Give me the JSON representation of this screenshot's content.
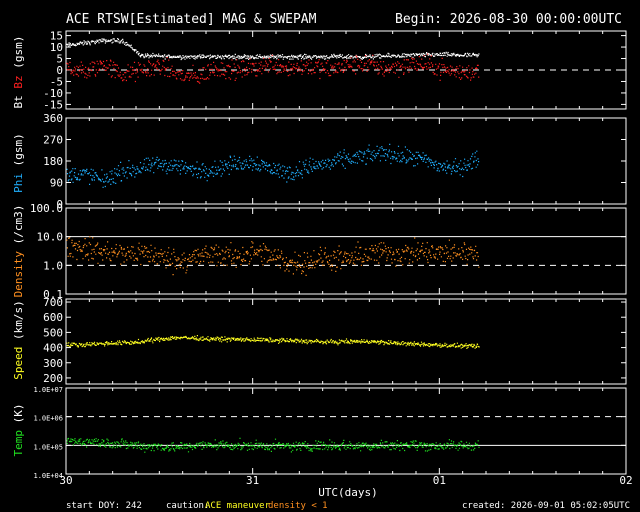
{
  "header": {
    "title": "ACE RTSW[Estimated] MAG & SWEPAM",
    "begin": "Begin: 2026-08-30 00:00:00UTC"
  },
  "footer": {
    "start_doy": "start DOY: 242",
    "caution_label": "caution:",
    "caution_ace": "ACE maneuver",
    "caution_density": "density < 1",
    "created": "created: 2026-09-01 05:02:05UTC"
  },
  "x_axis": {
    "label": "UTC(days)",
    "ticks": [
      "30",
      "31",
      "01",
      "02"
    ],
    "range_days": [
      0,
      3
    ],
    "data_end_day": 2.21
  },
  "colors": {
    "bt": "#ffffff",
    "bz": "#ff2020",
    "phi": "#20b0ff",
    "density": "#ff9020",
    "speed": "#ffff20",
    "temp": "#20e020",
    "caution_ace": "#ffff20",
    "caution_density": "#ff9020"
  },
  "chart_data": [
    {
      "type": "scatter",
      "id": "mag",
      "ylabel_parts": [
        "Bt",
        "Bz",
        "(gsm)"
      ],
      "y_ticks": [
        "15",
        "10",
        "5",
        "0",
        "-5",
        "-10",
        "-15"
      ],
      "ylim": [
        -17,
        17
      ],
      "dashed_line": 0,
      "series": [
        {
          "name": "Bt",
          "color": "bt",
          "x": [
            0.0,
            0.1,
            0.2,
            0.3,
            0.35,
            0.4,
            0.6,
            0.8,
            1.0,
            1.2,
            1.4,
            1.6,
            1.8,
            2.0,
            2.2
          ],
          "y": [
            11,
            12,
            13,
            13,
            10,
            6.5,
            6,
            6,
            6,
            6,
            6,
            6,
            6.5,
            7,
            6.5
          ],
          "noise": 0.8
        },
        {
          "name": "Bz",
          "color": "bz",
          "x": [
            0.0,
            0.1,
            0.2,
            0.3,
            0.35,
            0.4,
            0.5,
            0.6,
            0.7,
            0.8,
            0.9,
            1.0,
            1.1,
            1.2,
            1.3,
            1.4,
            1.5,
            1.6,
            1.7,
            1.8,
            1.9,
            2.0,
            2.1,
            2.2
          ],
          "y": [
            2,
            -1,
            3,
            -2,
            -1,
            0,
            2,
            -2,
            -3,
            1,
            0,
            1,
            3,
            1,
            2,
            0,
            2,
            3,
            1,
            2,
            3,
            1,
            -1,
            0
          ],
          "noise": 3.5
        }
      ]
    },
    {
      "type": "scatter",
      "id": "phi",
      "ylabel_parts": [
        "Phi",
        "(gsm)"
      ],
      "y_ticks": [
        "360",
        "270",
        "180",
        "90",
        "0"
      ],
      "ylim": [
        0,
        360
      ],
      "series": [
        {
          "name": "Phi",
          "color": "phi",
          "x": [
            0.0,
            0.1,
            0.2,
            0.3,
            0.4,
            0.5,
            0.6,
            0.7,
            0.8,
            0.9,
            1.0,
            1.1,
            1.2,
            1.3,
            1.4,
            1.5,
            1.6,
            1.7,
            1.8,
            1.9,
            2.0,
            2.1,
            2.2
          ],
          "y": [
            120,
            130,
            100,
            140,
            150,
            170,
            160,
            140,
            150,
            170,
            180,
            150,
            130,
            160,
            170,
            190,
            200,
            220,
            200,
            190,
            160,
            150,
            190
          ],
          "noise": 30
        }
      ]
    },
    {
      "type": "scatter",
      "id": "density",
      "ylabel_parts": [
        "Density",
        "(/cm3)"
      ],
      "y_ticks": [
        "100.0",
        "10.0",
        "1.0",
        "0.1"
      ],
      "log": true,
      "ylim": [
        0.1,
        100
      ],
      "solid_line": 10,
      "dashed_line": 1,
      "series": [
        {
          "name": "Density",
          "color": "density",
          "x": [
            0.0,
            0.1,
            0.2,
            0.3,
            0.4,
            0.5,
            0.6,
            0.7,
            0.8,
            0.9,
            1.0,
            1.1,
            1.2,
            1.3,
            1.4,
            1.5,
            1.6,
            1.7,
            1.8,
            1.9,
            2.0,
            2.1,
            2.2
          ],
          "y": [
            5,
            4,
            3,
            2.5,
            3,
            2,
            1.5,
            2,
            2.5,
            2,
            3,
            2,
            1.2,
            1.5,
            1.8,
            1.5,
            2.5,
            3,
            2.5,
            3,
            2.5,
            3,
            3
          ],
          "noise": 0.35
        }
      ]
    },
    {
      "type": "scatter",
      "id": "speed",
      "ylabel_parts": [
        "Speed",
        "(km/s)"
      ],
      "y_ticks": [
        "700",
        "600",
        "500",
        "400",
        "300",
        "200"
      ],
      "ylim": [
        160,
        720
      ],
      "series": [
        {
          "name": "Speed",
          "color": "speed",
          "x": [
            0.0,
            0.2,
            0.4,
            0.5,
            0.6,
            0.8,
            1.0,
            1.2,
            1.4,
            1.6,
            1.8,
            2.0,
            2.2
          ],
          "y": [
            420,
            430,
            440,
            460,
            470,
            460,
            455,
            450,
            440,
            445,
            430,
            420,
            410
          ],
          "noise": 12
        }
      ]
    },
    {
      "type": "scatter",
      "id": "temp",
      "ylabel_parts": [
        "Temp",
        "(K)"
      ],
      "y_ticks": [
        "1.0E+07",
        "1.0E+06",
        "1.0E+05",
        "1.0E+04"
      ],
      "log": true,
      "ylim": [
        10000,
        10000000
      ],
      "solid_line": 100000,
      "dashed_line": 1000000,
      "series": [
        {
          "name": "Temp",
          "color": "temp",
          "x": [
            0.0,
            0.2,
            0.4,
            0.6,
            0.8,
            1.0,
            1.2,
            1.4,
            1.6,
            1.8,
            2.0,
            2.2
          ],
          "y": [
            150000,
            130000,
            100000,
            90000,
            110000,
            100000,
            95000,
            105000,
            100000,
            110000,
            100000,
            105000
          ],
          "noise": 0.15
        }
      ]
    }
  ]
}
